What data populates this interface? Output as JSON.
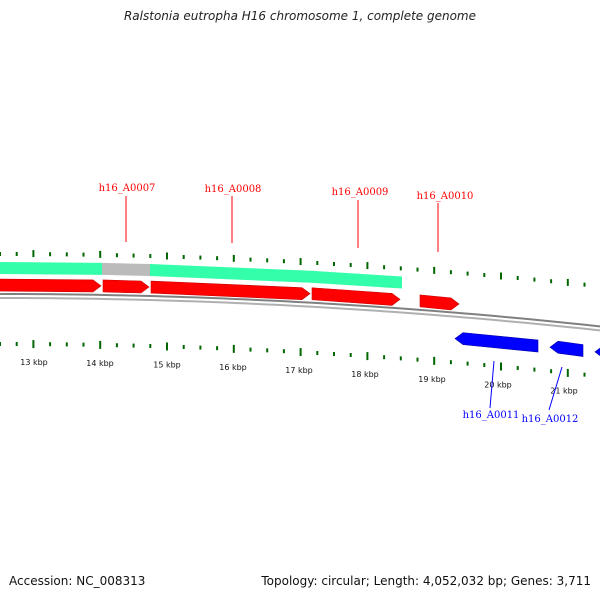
{
  "title": "Ralstonia eutropha H16 chromosome 1, complete genome",
  "footer": {
    "accession": "Accession: NC_008313",
    "summary": "Topology: circular; Length: 4,052,032 bp; Genes: 3,711"
  },
  "colors": {
    "forward_gene": "#ff0000",
    "reverse_gene": "#0000ff",
    "coding_band": "#33ffaa",
    "gap_band": "#bbbbbb",
    "tick": "#006600",
    "backbone": "#808080"
  },
  "kbp_ticks": [
    "13 kbp",
    "14 kbp",
    "15 kbp",
    "16 kbp",
    "17 kbp",
    "18 kbp",
    "19 kbp",
    "20 kbp",
    "21 kbp"
  ],
  "genes": [
    {
      "id": "h16_A0007",
      "strand": "forward"
    },
    {
      "id": "h16_A0008",
      "strand": "forward"
    },
    {
      "id": "h16_A0009",
      "strand": "forward"
    },
    {
      "id": "h16_A0010",
      "strand": "forward"
    },
    {
      "id": "h16_A0011",
      "strand": "reverse"
    },
    {
      "id": "h16_A0012",
      "strand": "reverse"
    }
  ]
}
